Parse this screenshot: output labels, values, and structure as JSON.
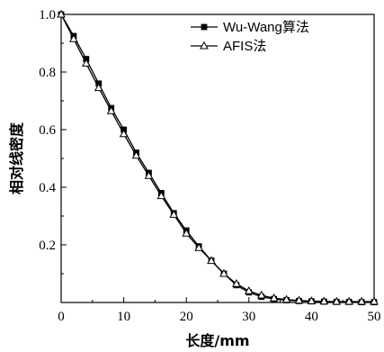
{
  "chart_data": {
    "type": "line",
    "xlabel": "长度/mm",
    "ylabel": "相对线密度",
    "xlim": [
      0,
      50
    ],
    "ylim": [
      0,
      1.0
    ],
    "xticks": [
      0,
      10,
      20,
      30,
      40,
      50
    ],
    "xtick_labels": [
      "0",
      "10",
      "20",
      "30",
      "40",
      "50"
    ],
    "yticks": [
      0.2,
      0.4,
      0.6,
      0.8,
      1.0
    ],
    "ytick_labels": [
      "0.2",
      "0.4",
      "0.6",
      "0.8",
      "1.0"
    ],
    "legend_position": "top-right",
    "grid": false,
    "x": [
      0,
      2,
      4,
      6,
      8,
      10,
      12,
      14,
      16,
      18,
      20,
      22,
      24,
      26,
      28,
      30,
      32,
      34,
      36,
      38,
      40,
      42,
      44,
      46,
      48,
      50
    ],
    "series": [
      {
        "name": "Wu-Wang算法",
        "marker": "filled-square",
        "color": "#000000",
        "values": [
          1.0,
          0.925,
          0.845,
          0.76,
          0.675,
          0.6,
          0.52,
          0.45,
          0.38,
          0.31,
          0.25,
          0.195,
          0.145,
          0.1,
          0.06,
          0.035,
          0.02,
          0.012,
          0.008,
          0.005,
          0.004,
          0.003,
          0.002,
          0.002,
          0.001,
          0.001
        ]
      },
      {
        "name": "AFIS法",
        "marker": "open-triangle",
        "color": "#000000",
        "values": [
          1.0,
          0.915,
          0.83,
          0.745,
          0.665,
          0.585,
          0.51,
          0.44,
          0.37,
          0.305,
          0.24,
          0.19,
          0.145,
          0.1,
          0.065,
          0.04,
          0.025,
          0.015,
          0.01,
          0.007,
          0.005,
          0.004,
          0.003,
          0.003,
          0.003,
          0.003
        ]
      }
    ]
  }
}
